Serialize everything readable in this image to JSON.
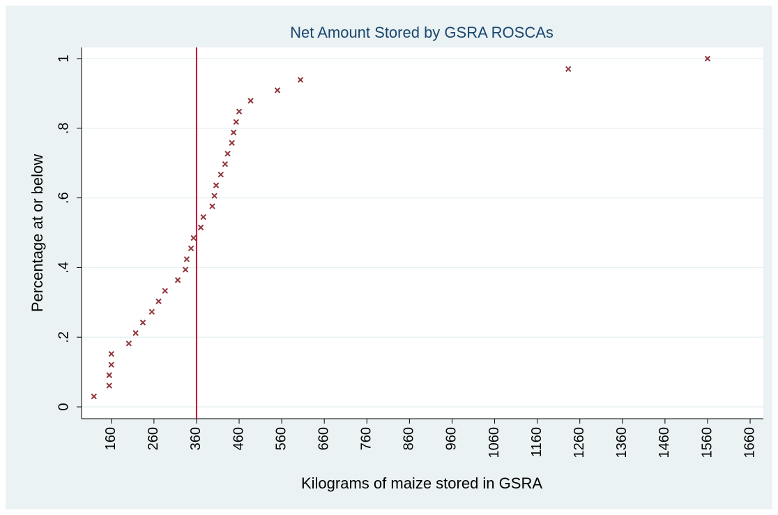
{
  "chart_data": {
    "type": "scatter",
    "title": "Net Amount Stored by GSRA ROSCAs",
    "xlabel": "Kilograms of maize stored in GSRA",
    "ylabel": "Percentage at or below",
    "x": [
      119,
      155,
      155,
      160,
      160,
      201,
      217,
      234,
      255,
      271,
      286,
      316,
      334,
      337,
      347,
      353,
      370,
      376,
      397,
      402,
      406,
      417,
      427,
      433,
      443,
      447,
      453,
      460,
      487,
      550,
      604,
      1233,
      1560
    ],
    "values": [
      0.03,
      0.061,
      0.091,
      0.121,
      0.152,
      0.182,
      0.212,
      0.242,
      0.273,
      0.303,
      0.333,
      0.364,
      0.394,
      0.424,
      0.455,
      0.485,
      0.515,
      0.545,
      0.576,
      0.606,
      0.636,
      0.667,
      0.697,
      0.727,
      0.758,
      0.788,
      0.818,
      0.848,
      0.879,
      0.909,
      0.939,
      0.97,
      1
    ],
    "color": "#90353b",
    "reference_line": {
      "x": 360,
      "color": "#c10534"
    },
    "xlim": [
      90,
      1691
    ],
    "xticks": [
      160,
      260,
      360,
      460,
      560,
      660,
      760,
      860,
      960,
      1060,
      1160,
      1260,
      1360,
      1460,
      1560,
      1660
    ],
    "ylim": [
      -0.034,
      1.032
    ],
    "yticks": [
      0,
      {
        "value": 0.2,
        "label": ".2"
      },
      {
        "value": 0.4,
        "label": ".4"
      },
      {
        "value": 0.6,
        "label": ".6"
      },
      {
        "value": 0.8,
        "label": ".8"
      },
      1
    ],
    "grid": true
  }
}
